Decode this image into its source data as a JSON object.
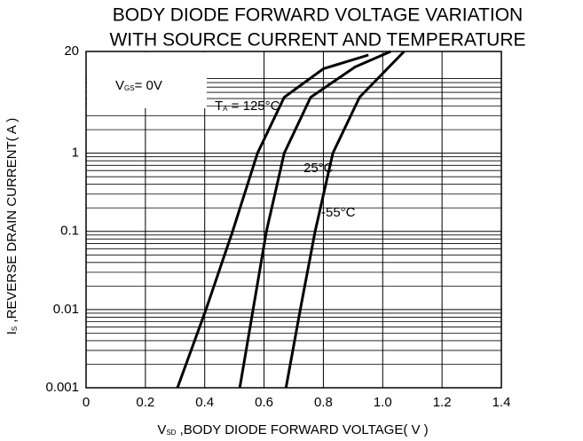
{
  "chart_data": {
    "type": "line",
    "title": [
      "BODY DIODE FORWARD VOLTAGE VARIATION",
      "WITH SOURCE CURRENT AND TEMPERATURE"
    ],
    "x_label": {
      "text": "V",
      "sub": "SD",
      "rest": " ,BODY DIODE FORWARD VOLTAGE( V )"
    },
    "y_label": {
      "text": "I",
      "sub": "S",
      "rest": " ,REVERSE DRAIN CURRENT( A )"
    },
    "annotations": [
      {
        "text": "V",
        "sub": "GS",
        "rest": "= 0V"
      },
      {
        "text": "T",
        "sub": "A",
        "rest": " = 125°C"
      },
      {
        "text": "25°C"
      },
      {
        "text": "-55°C"
      }
    ],
    "xlim": [
      0,
      1.4
    ],
    "xticks": [
      0,
      0.2,
      0.4,
      0.6,
      0.8,
      {
        "value": 1,
        "label": "1.0"
      },
      1.2,
      1.4
    ],
    "ylim": [
      0.001,
      20
    ],
    "yticks": [
      0.001,
      0.01,
      0.1,
      1,
      20
    ],
    "log_y": true,
    "grid": true,
    "series": [
      {
        "name": "125",
        "color": "#000000",
        "x": [
          0.308,
          0.404,
          0.494,
          0.578,
          0.668,
          0.8,
          0.952
        ],
        "values": [
          0.001,
          0.01,
          0.1,
          1,
          5.2,
          12,
          18
        ]
      },
      {
        "name": "25",
        "color": "#000000",
        "x": [
          0.518,
          0.563,
          0.608,
          0.668,
          0.757,
          0.907,
          1.027
        ],
        "values": [
          0.001,
          0.01,
          0.1,
          1,
          5.2,
          12.7,
          20
        ]
      },
      {
        "name": "-55",
        "color": "#000000",
        "x": [
          0.674,
          0.722,
          0.772,
          0.832,
          0.922,
          1.072
        ],
        "values": [
          0.001,
          0.01,
          0.1,
          1,
          5.2,
          20
        ]
      }
    ]
  }
}
